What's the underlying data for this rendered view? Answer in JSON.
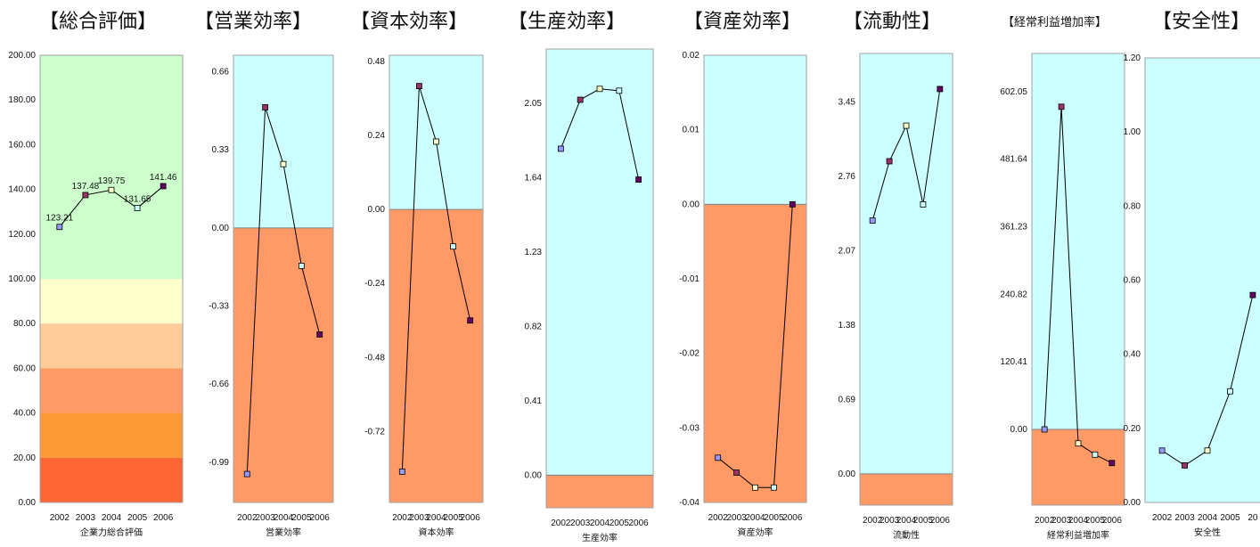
{
  "titles": [
    "【総合評価】",
    "【営業効率】",
    "【資本効率】",
    "【生産効率】",
    "【資産効率】",
    "【流動性】",
    "【経常利益増加率】",
    "【安全性】"
  ],
  "colors": {
    "positive_bg": "#ccffff",
    "negative_bg": "#ff9966",
    "line": "#000000",
    "marker_2002": "#9999ff",
    "marker_2003": "#993366",
    "marker_2004": "#ffffcc",
    "marker_2005": "#ccffff",
    "marker_2006": "#660066",
    "band_100_200": "#ccffcc",
    "band_80_100": "#ffffcc",
    "band_60_80": "#ffcc99",
    "band_40_60": "#ff9966",
    "band_20_40": "#ff9933",
    "band_0_20": "#ff6633"
  },
  "chart_data": [
    {
      "type": "line",
      "title": "【総合評価】",
      "xlabel": "企業力総合評価",
      "categories": [
        "2002",
        "2003",
        "2004",
        "2005",
        "2006"
      ],
      "values": [
        123.21,
        137.48,
        139.75,
        131.65,
        141.46
      ],
      "data_labels": [
        "123.21",
        "137.48",
        "139.75",
        "131.65",
        "141.46"
      ],
      "ylim": [
        0,
        200
      ],
      "yticks": [
        "0.00",
        "20.00",
        "40.00",
        "60.00",
        "80.00",
        "100.00",
        "120.00",
        "140.00",
        "160.00",
        "180.00",
        "200.00"
      ],
      "ytick_values": [
        0,
        20,
        40,
        60,
        80,
        100,
        120,
        140,
        160,
        180,
        200
      ],
      "bands": [
        {
          "from": 100,
          "to": 200,
          "color": "#ccffcc"
        },
        {
          "from": 80,
          "to": 100,
          "color": "#ffffcc"
        },
        {
          "from": 60,
          "to": 80,
          "color": "#ffcc99"
        },
        {
          "from": 40,
          "to": 60,
          "color": "#ff9966"
        },
        {
          "from": 20,
          "to": 40,
          "color": "#ff9933"
        },
        {
          "from": 0,
          "to": 20,
          "color": "#ff6633"
        }
      ]
    },
    {
      "type": "line",
      "title": "【営業効率】",
      "xlabel": "営業効率",
      "categories": [
        "2002",
        "2003",
        "2004",
        "2005",
        "2006"
      ],
      "values": [
        -1.04,
        0.51,
        0.27,
        -0.16,
        -0.45
      ],
      "ylim": [
        -1.16,
        0.73
      ],
      "yticks": [
        "-0.99",
        "-0.66",
        "-0.33",
        "0.00",
        "0.33",
        "0.66"
      ],
      "ytick_values": [
        -0.99,
        -0.66,
        -0.33,
        0,
        0.33,
        0.66
      ]
    },
    {
      "type": "line",
      "title": "【資本効率】",
      "xlabel": "資本効率",
      "categories": [
        "2002",
        "2003",
        "2004",
        "2005",
        "2006"
      ],
      "values": [
        -0.85,
        0.4,
        0.22,
        -0.12,
        -0.36
      ],
      "ylim": [
        -0.95,
        0.5
      ],
      "yticks": [
        "-0.72",
        "-0.48",
        "-0.24",
        "0.00",
        "0.24",
        "0.48"
      ],
      "ytick_values": [
        -0.72,
        -0.48,
        -0.24,
        0,
        0.24,
        0.48
      ]
    },
    {
      "type": "line",
      "title": "【生産効率】",
      "xlabel": "生産効率",
      "categories": [
        "2002",
        "2003",
        "2004",
        "2005",
        "2006"
      ],
      "values": [
        1.8,
        2.07,
        2.13,
        2.12,
        1.63
      ],
      "ylim": [
        -0.18,
        2.35
      ],
      "yticks": [
        "0.00",
        "0.41",
        "0.82",
        "1.23",
        "1.64",
        "2.05"
      ],
      "ytick_values": [
        0,
        0.41,
        0.82,
        1.23,
        1.64,
        2.05
      ]
    },
    {
      "type": "line",
      "title": "【資産効率】",
      "xlabel": "資産効率",
      "categories": [
        "2002",
        "2003",
        "2004",
        "2005",
        "2006"
      ],
      "values": [
        -0.034,
        -0.036,
        -0.038,
        -0.038,
        0
      ],
      "ylim": [
        -0.04,
        0.02
      ],
      "yticks": [
        "-0.04",
        "-0.03",
        "-0.02",
        "-0.01",
        "0.00",
        "0.01",
        "0.02"
      ],
      "ytick_values": [
        -0.04,
        -0.03,
        -0.02,
        -0.01,
        0,
        0.01,
        0.02
      ]
    },
    {
      "type": "line",
      "title": "【流動性】",
      "xlabel": "流動性",
      "categories": [
        "2002",
        "2003",
        "2004",
        "2005",
        "2006"
      ],
      "values": [
        2.35,
        2.9,
        3.23,
        2.5,
        3.57
      ],
      "ylim": [
        -0.29,
        3.9
      ],
      "yticks": [
        "0.00",
        "0.69",
        "1.38",
        "2.07",
        "2.76",
        "3.45"
      ],
      "ytick_values": [
        0,
        0.69,
        1.38,
        2.07,
        2.76,
        3.45
      ]
    },
    {
      "type": "line",
      "title": "【経常利益増加率】",
      "xlabel": "経常利益増加率",
      "categories": [
        "2002",
        "2003",
        "2004",
        "2005",
        "2006"
      ],
      "values": [
        0,
        575,
        -25,
        -45,
        -60
      ],
      "ylim": [
        -135,
        670
      ],
      "yticks": [
        "0.00",
        "120.41",
        "240.82",
        "361.23",
        "481.64",
        "602.05"
      ],
      "ytick_values": [
        0,
        120.41,
        240.82,
        361.23,
        481.64,
        602.05
      ]
    },
    {
      "type": "line",
      "title": "【安全性】",
      "xlabel": "安全性",
      "categories": [
        "2002",
        "2003",
        "2004",
        "2005",
        "20"
      ],
      "values": [
        0.14,
        0.1,
        0.14,
        0.3,
        0.56
      ],
      "ylim": [
        0,
        1.2
      ],
      "yticks": [
        "0.00",
        "0.20",
        "0.40",
        "0.60",
        "0.80",
        "1.00",
        "1.20"
      ],
      "ytick_values": [
        0,
        0.2,
        0.4,
        0.6,
        0.8,
        1.0,
        1.2
      ]
    }
  ]
}
